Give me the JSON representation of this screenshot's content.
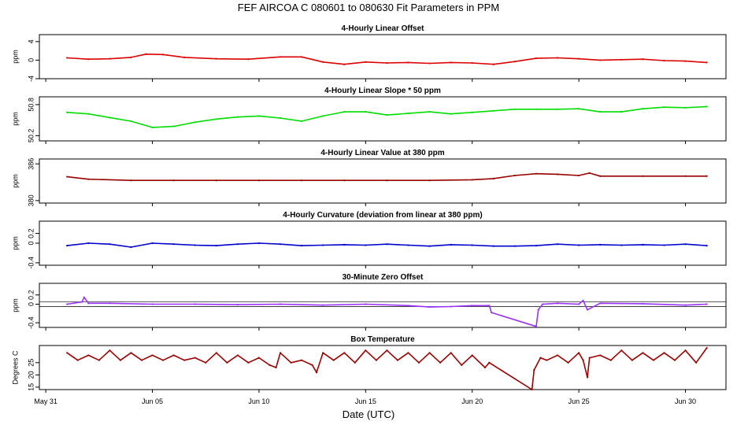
{
  "page_title": "FEF   AIRCOA C   080601 to 080630   Fit Parameters in PPM",
  "xaxis": {
    "label": "Date (UTC)",
    "range": [
      -0.3,
      31.9
    ],
    "ticks": [
      0,
      5,
      10,
      15,
      20,
      25,
      30
    ],
    "tick_labels": [
      "May 31",
      "Jun 05",
      "Jun 10",
      "Jun 15",
      "Jun 20",
      "Jun 25",
      "Jun 30"
    ]
  },
  "colors": {
    "offset": "#dd0000",
    "slope": "#00dd00",
    "value": "#990000",
    "curvature": "#0000cc",
    "zero": "#9933ff",
    "temp": "#990000"
  },
  "chart_data": [
    {
      "type": "line",
      "title": "4-Hourly Linear Offset",
      "ylabel": "ppm",
      "ylim": [
        -4,
        5.5
      ],
      "yticks": [
        -4,
        0,
        4
      ],
      "ytick_labels": [
        "-4",
        "0",
        "4"
      ],
      "series": [
        {
          "name": "offset",
          "color_key": "offset",
          "x": [
            1,
            2,
            3,
            4,
            4.7,
            5.5,
            6.5,
            8,
            9.5,
            11,
            12,
            13,
            14,
            15,
            16,
            17,
            18,
            19,
            20,
            21,
            22,
            23,
            24,
            25,
            26,
            27,
            28,
            29,
            30,
            31
          ],
          "y": [
            0.5,
            0.2,
            0.3,
            0.6,
            1.3,
            1.2,
            0.6,
            0.3,
            0.2,
            0.7,
            0.7,
            -0.4,
            -0.9,
            -0.4,
            -0.6,
            -0.5,
            -0.7,
            -0.5,
            -0.6,
            -0.9,
            -0.3,
            0.4,
            0.5,
            0.3,
            0.0,
            0.1,
            0.2,
            -0.1,
            -0.2,
            -0.5
          ]
        }
      ]
    },
    {
      "type": "line",
      "title": "4-Hourly Linear Slope * 50 ppm",
      "ylabel": "ppm",
      "ylim": [
        50.1,
        50.95
      ],
      "yticks": [
        50.2,
        50.8
      ],
      "ytick_labels": [
        "50.2",
        "50.8"
      ],
      "series": [
        {
          "name": "slope",
          "color_key": "slope",
          "x": [
            1,
            2,
            3,
            4,
            5,
            6,
            7,
            8,
            9,
            10,
            11,
            12,
            13,
            14,
            15,
            16,
            17,
            18,
            19,
            20,
            21,
            22,
            23,
            24,
            25,
            26,
            27,
            28,
            29,
            30,
            31
          ],
          "y": [
            50.65,
            50.62,
            50.55,
            50.48,
            50.36,
            50.38,
            50.46,
            50.52,
            50.56,
            50.58,
            50.54,
            50.48,
            50.58,
            50.66,
            50.66,
            50.6,
            50.63,
            50.66,
            50.62,
            50.65,
            50.68,
            50.71,
            50.71,
            50.71,
            50.72,
            50.66,
            50.66,
            50.72,
            50.75,
            50.74,
            50.76
          ]
        }
      ]
    },
    {
      "type": "line",
      "title": "4-Hourly Linear Value at 380 ppm",
      "ylabel": "ppm",
      "ylim": [
        379.6,
        386.8
      ],
      "yticks": [
        380,
        386
      ],
      "ytick_labels": [
        "380",
        "386"
      ],
      "series": [
        {
          "name": "value",
          "color_key": "value",
          "x": [
            1,
            2,
            4,
            6,
            8,
            10,
            12,
            14,
            16,
            18,
            20,
            21,
            22,
            23,
            24,
            25,
            25.5,
            26,
            28,
            30,
            31
          ],
          "y": [
            383.9,
            383.5,
            383.3,
            383.3,
            383.3,
            383.3,
            383.3,
            383.3,
            383.3,
            383.3,
            383.4,
            383.6,
            384.1,
            384.4,
            384.3,
            384.1,
            384.5,
            384.0,
            384.0,
            384.0,
            384.0
          ]
        }
      ]
    },
    {
      "type": "line",
      "title": "4-Hourly Curvature (deviation from linear at 380 ppm)",
      "ylabel": "ppm",
      "ylim": [
        -0.45,
        0.45
      ],
      "yticks": [
        -0.4,
        0,
        0.2
      ],
      "ytick_labels": [
        "-0.4",
        "0",
        "0.2"
      ],
      "series": [
        {
          "name": "curvature",
          "color_key": "curvature",
          "x": [
            1,
            2,
            3,
            4,
            5,
            6,
            7,
            8,
            9,
            10,
            11,
            12,
            13,
            14,
            15,
            16,
            17,
            18,
            19,
            20,
            21,
            22,
            23,
            24,
            25,
            26,
            27,
            28,
            29,
            30,
            31
          ],
          "y": [
            -0.05,
            0.0,
            -0.02,
            -0.08,
            0.0,
            -0.02,
            -0.04,
            -0.05,
            -0.02,
            0.0,
            -0.02,
            -0.05,
            -0.04,
            -0.03,
            -0.04,
            -0.02,
            -0.04,
            -0.06,
            -0.03,
            -0.04,
            -0.06,
            -0.06,
            -0.05,
            -0.02,
            -0.04,
            -0.03,
            -0.04,
            -0.03,
            -0.04,
            -0.02,
            -0.05
          ]
        }
      ]
    },
    {
      "type": "line",
      "title": "30-Minute Zero Offset",
      "ylabel": "ppm",
      "ylim": [
        -0.5,
        0.45
      ],
      "yticks": [
        -0.4,
        0,
        0.2
      ],
      "ytick_labels": [
        "-0.4",
        "0",
        "0.2"
      ],
      "reference_lines": [
        0.05,
        -0.05
      ],
      "series": [
        {
          "name": "zero",
          "color_key": "zero",
          "x": [
            1,
            1.7,
            1.8,
            2,
            3,
            5,
            7,
            9,
            11,
            13,
            15,
            17,
            18,
            19,
            20,
            20.8,
            20.9,
            23,
            23.1,
            23.3,
            24,
            25,
            25.2,
            25.4,
            26,
            28,
            30,
            31
          ],
          "y": [
            0.0,
            0.05,
            0.15,
            0.02,
            0.02,
            0.0,
            0.0,
            -0.01,
            0.0,
            -0.02,
            0.0,
            -0.03,
            -0.06,
            -0.05,
            -0.03,
            -0.03,
            -0.18,
            -0.48,
            -0.12,
            0.0,
            0.02,
            0.0,
            0.08,
            -0.12,
            0.02,
            0.01,
            -0.02,
            0.0
          ]
        }
      ]
    },
    {
      "type": "line",
      "title": "Box Temperature",
      "ylabel": "Degrees C",
      "ylim": [
        14,
        32
      ],
      "yticks": [
        15,
        20,
        25
      ],
      "ytick_labels": [
        "15",
        "20",
        "25"
      ],
      "series": [
        {
          "name": "temp",
          "color_key": "temp",
          "x": [
            1,
            1.5,
            2,
            2.5,
            3,
            3.5,
            4,
            4.5,
            5,
            5.5,
            6,
            6.5,
            7,
            7.5,
            8,
            8.5,
            9,
            9.5,
            10,
            10.5,
            10.8,
            11,
            11.5,
            12,
            12.5,
            12.7,
            13,
            13.5,
            14,
            14.5,
            15,
            15.5,
            16,
            16.5,
            17,
            17.5,
            18,
            18.5,
            19,
            19.5,
            20,
            20.6,
            20.8,
            22.8,
            22.9,
            23.2,
            23.5,
            24,
            24.5,
            25,
            25.2,
            25.4,
            25.5,
            26,
            26.5,
            27,
            27.5,
            28,
            28.5,
            29,
            29.5,
            30,
            30.5,
            31
          ],
          "y": [
            29,
            26,
            28,
            26,
            30,
            26,
            29,
            26,
            28,
            26,
            28,
            26,
            27,
            25,
            29,
            25,
            28,
            25,
            27,
            24,
            23,
            29,
            25,
            26,
            24,
            21,
            29,
            26,
            29,
            25,
            30,
            26,
            30,
            26,
            29,
            25,
            29,
            25,
            29,
            24,
            28,
            23,
            25,
            14,
            22,
            27,
            26,
            28,
            25,
            29,
            26,
            19,
            27,
            28,
            26,
            30,
            26,
            29,
            26,
            29,
            26,
            30,
            25,
            31
          ]
        }
      ]
    }
  ]
}
